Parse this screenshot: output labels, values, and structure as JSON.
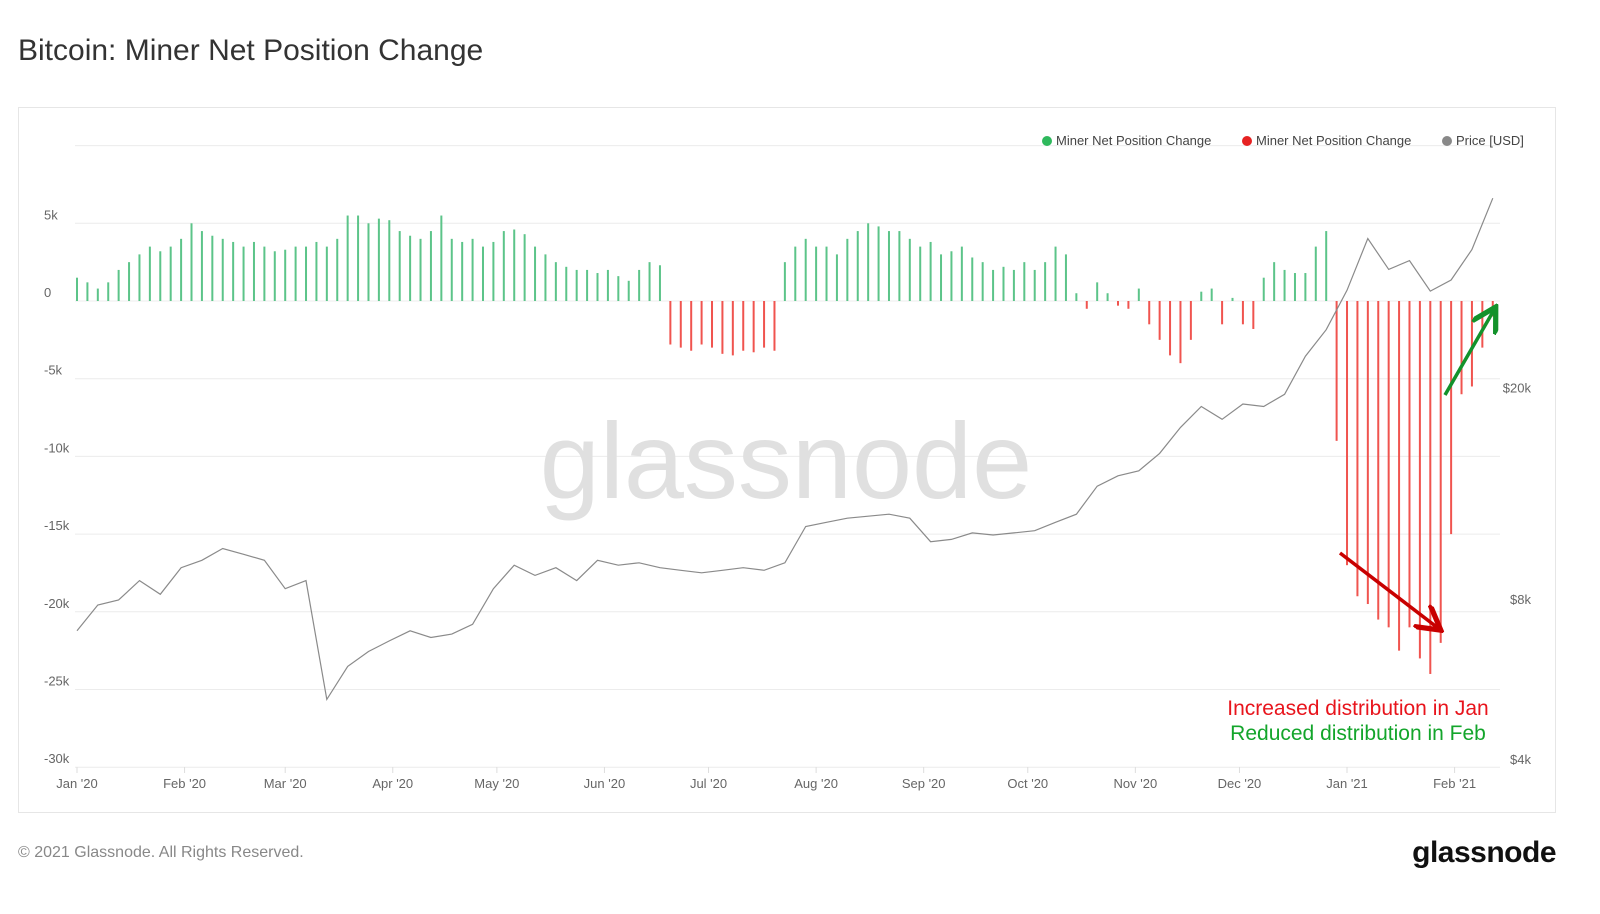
{
  "title": "Bitcoin: Miner Net Position Change",
  "footer": {
    "copyright": "© 2021 Glassnode. All Rights Reserved.",
    "logo": "glassnode"
  },
  "watermark": "glassnode",
  "colors": {
    "positive": "#5cc489",
    "negative": "#f0544f",
    "price": "#8a8a8a",
    "legend_positive": "#2eb85c",
    "legend_negative": "#e62222",
    "legend_price": "#888888",
    "annotation_red": "#e8141c",
    "annotation_green": "#13a52b"
  },
  "chart_data": {
    "type": "bar+line",
    "title": "Bitcoin: Miner Net Position Change",
    "legend": [
      "Miner Net Position Change",
      "Miner Net Position Change",
      "Price [USD]"
    ],
    "legend_placement": "top-right",
    "x_start_date": "2020-01-01",
    "x_end_day": 408,
    "x_ticks": [
      {
        "label": "Jan '20",
        "day": 0
      },
      {
        "label": "Feb '20",
        "day": 31
      },
      {
        "label": "Mar '20",
        "day": 60
      },
      {
        "label": "Apr '20",
        "day": 91
      },
      {
        "label": "May '20",
        "day": 121
      },
      {
        "label": "Jun '20",
        "day": 152
      },
      {
        "label": "Jul '20",
        "day": 182
      },
      {
        "label": "Aug '20",
        "day": 213
      },
      {
        "label": "Sep '20",
        "day": 244
      },
      {
        "label": "Oct '20",
        "day": 274
      },
      {
        "label": "Nov '20",
        "day": 305
      },
      {
        "label": "Dec '20",
        "day": 335
      },
      {
        "label": "Jan '21",
        "day": 366
      },
      {
        "label": "Feb '21",
        "day": 397
      }
    ],
    "y_left": {
      "range": [
        -30000,
        10000
      ],
      "ticks": [
        {
          "label": "5k",
          "value": 5000
        },
        {
          "label": "0",
          "value": 0
        },
        {
          "label": "-5k",
          "value": -5000
        },
        {
          "label": "-10k",
          "value": -10000
        },
        {
          "label": "-15k",
          "value": -15000
        },
        {
          "label": "-20k",
          "value": -20000
        },
        {
          "label": "-25k",
          "value": -25000
        },
        {
          "label": "-30k",
          "value": -30000
        }
      ]
    },
    "y_right": {
      "scale": "log",
      "range": [
        4000,
        50000
      ],
      "ticks": [
        {
          "label": "$20k",
          "value": 20000
        },
        {
          "label": "$8k",
          "value": 8000
        },
        {
          "label": "$4k",
          "value": 4000
        }
      ]
    },
    "grid": true,
    "net_position": {
      "unit": "BTC (thousands)",
      "day_step": 3,
      "values": [
        1.5,
        1.2,
        0.8,
        1.2,
        2,
        2.5,
        3,
        3.5,
        3.2,
        3.5,
        4,
        5,
        4.5,
        4.2,
        4,
        3.8,
        3.5,
        3.8,
        3.5,
        3.2,
        3.3,
        3.5,
        3.5,
        3.8,
        3.5,
        4,
        5.5,
        5.5,
        5,
        5.3,
        5.2,
        4.5,
        4.2,
        4,
        4.5,
        5.5,
        4,
        3.8,
        4,
        3.5,
        3.8,
        4.5,
        4.6,
        4.3,
        3.5,
        3,
        2.5,
        2.2,
        2,
        2,
        1.8,
        2,
        1.6,
        1.3,
        2,
        2.5,
        2.3,
        -2.8,
        -3,
        -3.2,
        -2.8,
        -3,
        -3.4,
        -3.5,
        -3.2,
        -3.3,
        -3,
        -3.2,
        2.5,
        3.5,
        4,
        3.5,
        3.5,
        3,
        4,
        4.5,
        5,
        4.8,
        4.5,
        4.5,
        4,
        3.5,
        3.8,
        3,
        3.2,
        3.5,
        2.8,
        2.5,
        2,
        2.2,
        2,
        2.5,
        2,
        2.5,
        3.5,
        3,
        0.5,
        -0.5,
        1.2,
        0.5,
        -0.3,
        -0.5,
        0.8,
        -1.5,
        -2.5,
        -3.5,
        -4,
        -2.5,
        0.6,
        0.8,
        -1.5,
        0.2,
        -1.5,
        -1.8,
        1.5,
        2.5,
        2,
        1.8,
        1.8,
        3.5,
        4.5,
        -9,
        -17,
        -19,
        -19.5,
        -20.5,
        -21,
        -22.5,
        -21,
        -23,
        -24,
        -22,
        -15,
        -6,
        -5.5,
        -3,
        -1
      ]
    },
    "price": {
      "unit": "USD",
      "day_step": 6,
      "values": [
        7000,
        7830,
        8000,
        8700,
        8200,
        9200,
        9500,
        10000,
        9750,
        9500,
        8400,
        8700,
        5200,
        6000,
        6400,
        6700,
        7000,
        6800,
        6900,
        7200,
        8400,
        9300,
        8900,
        9200,
        8700,
        9500,
        9300,
        9400,
        9200,
        9100,
        9000,
        9100,
        9200,
        9100,
        9400,
        11000,
        11200,
        11400,
        11500,
        11600,
        11400,
        10300,
        10400,
        10700,
        10600,
        10700,
        10800,
        11200,
        11600,
        13100,
        13700,
        14000,
        15100,
        16900,
        18500,
        17500,
        18700,
        18500,
        19500,
        23000,
        25800,
        30600,
        38300,
        33500,
        34800,
        30500,
        32000,
        36500,
        45600
      ]
    },
    "annotations": [
      "Increased distribution in Jan",
      "Reduced distribution in Feb"
    ]
  }
}
